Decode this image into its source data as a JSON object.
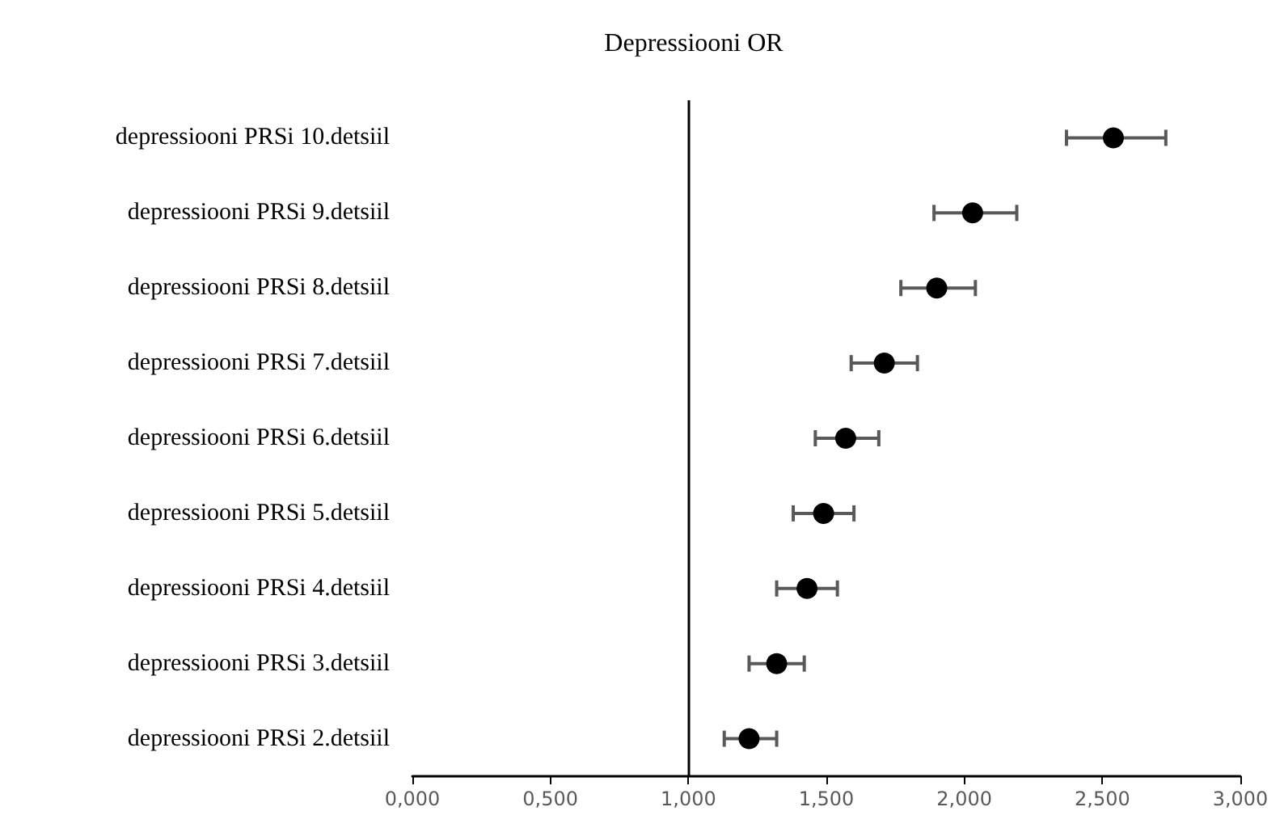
{
  "chart_data": {
    "type": "scatter",
    "title": "Depressiooni OR",
    "orientation": "horizontal",
    "categories": [
      "depressiooni PRSi 10.detsiil",
      "depressiooni PRSi 9.detsiil",
      "depressiooni PRSi 8.detsiil",
      "depressiooni PRSi 7.detsiil",
      "depressiooni PRSi 6.detsiil",
      "depressiooni PRSi 5.detsiil",
      "depressiooni PRSi 4.detsiil",
      "depressiooni PRSi 3.detsiil",
      "depressiooni PRSi 2.detsiil"
    ],
    "values": [
      2.54,
      2.03,
      1.9,
      1.71,
      1.57,
      1.49,
      1.43,
      1.32,
      1.22
    ],
    "errors": [
      [
        2.37,
        2.73
      ],
      [
        1.89,
        2.19
      ],
      [
        1.77,
        2.04
      ],
      [
        1.59,
        1.83
      ],
      [
        1.46,
        1.69
      ],
      [
        1.38,
        1.6
      ],
      [
        1.32,
        1.54
      ],
      [
        1.22,
        1.42
      ],
      [
        1.13,
        1.32
      ]
    ],
    "color": "#000000",
    "marker": "circle",
    "grid": false,
    "xlim": [
      0,
      3
    ],
    "xticks": [
      {
        "value": 0,
        "label": "0,000"
      },
      {
        "value": 0.5,
        "label": "0,500"
      },
      {
        "value": 1,
        "label": "1,000"
      },
      {
        "value": 1.5,
        "label": "1,500"
      },
      {
        "value": 2,
        "label": "2,000"
      },
      {
        "value": 2.5,
        "label": "2,500"
      },
      {
        "value": 3,
        "label": "3,000"
      }
    ],
    "ref_lines": [
      {
        "axis": "x",
        "value": 1,
        "label": null,
        "color": "#000000"
      }
    ]
  }
}
